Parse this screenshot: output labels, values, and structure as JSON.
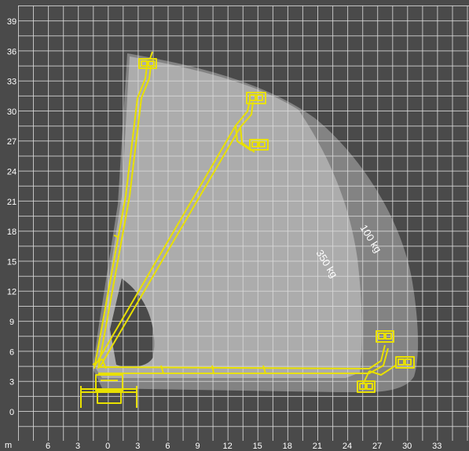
{
  "diagram": {
    "unit_label": "m",
    "x_ticks": [
      "6",
      "3",
      "0",
      "3",
      "6",
      "9",
      "12",
      "15",
      "18",
      "21",
      "24",
      "27",
      "30",
      "33"
    ],
    "y_ticks": [
      "39",
      "36",
      "33",
      "30",
      "27",
      "24",
      "21",
      "18",
      "15",
      "12",
      "9",
      "6",
      "3",
      "0"
    ],
    "zones": [
      {
        "label": "100 kg",
        "color": "#9a9a9a"
      },
      {
        "label": "350 kg",
        "color": "#b8b8b8"
      }
    ],
    "colors": {
      "background": "#4a4a4a",
      "grid": "#d8d8d8",
      "boom": "#e8e000",
      "outer_envelope": "#8c8c8c",
      "inner_envelope": "#b2b2b2"
    }
  }
}
